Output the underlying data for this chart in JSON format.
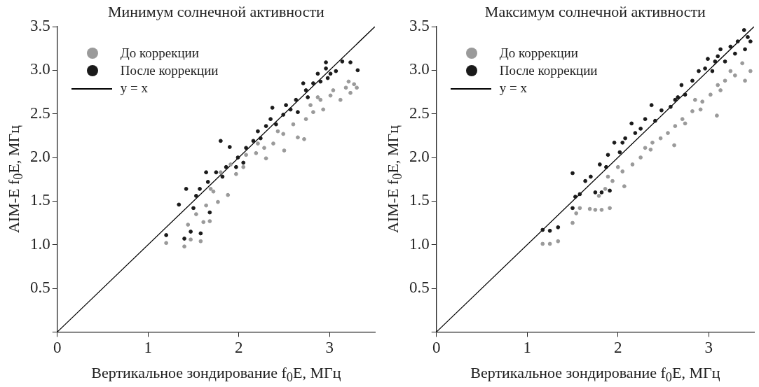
{
  "chart_data": [
    {
      "type": "scatter",
      "title": "Минимум солнечной активности",
      "xlabel": "Вертикальное зондирование f$_{0}$E, МГц",
      "ylabel": "AIM-E f$_{0}$E, МГц",
      "xlim": [
        0,
        3.5
      ],
      "ylim": [
        0,
        3.5
      ],
      "xticks": [
        0,
        1,
        2,
        3
      ],
      "yticks": [
        {
          "value": 0,
          "label": null
        },
        0.5,
        {
          "value": 1,
          "label": "1.0"
        },
        1.5,
        {
          "value": 2,
          "label": "2.0"
        },
        2.5,
        {
          "value": 3,
          "label": "3.0"
        },
        3.5
      ],
      "grid": false,
      "legend": "top left",
      "marker": "circle",
      "series": [
        {
          "name": "До коррекции",
          "type": "scatter",
          "color": "#9a9a9a",
          "x": [
            1.2,
            1.4,
            1.47,
            1.58,
            1.44,
            1.53,
            1.61,
            1.68,
            1.64,
            1.77,
            1.88,
            1.72,
            1.8,
            1.97,
            2.05,
            2.08,
            2.19,
            2.28,
            2.3,
            2.38,
            2.5,
            2.49,
            2.65,
            2.72,
            2.6,
            2.74,
            2.82,
            2.79,
            2.9,
            2.93,
            3.01,
            3.12,
            3.18,
            3.21,
            3.23,
            3.3,
            3.27,
            3.04,
            2.87,
            2.43,
            2.21,
            1.91,
            1.69
          ],
          "values": [
            1.02,
            0.98,
            1.06,
            1.04,
            1.23,
            1.35,
            1.26,
            1.27,
            1.45,
            1.49,
            1.57,
            1.61,
            1.83,
            1.81,
            1.89,
            2.03,
            2.05,
            2.11,
            1.99,
            2.16,
            2.08,
            2.27,
            2.23,
            2.21,
            2.38,
            2.44,
            2.52,
            2.6,
            2.66,
            2.55,
            2.71,
            2.66,
            2.8,
            2.87,
            2.74,
            2.8,
            2.84,
            2.77,
            2.69,
            2.3,
            2.16,
            1.92,
            1.64
          ]
        },
        {
          "name": "После коррекции",
          "type": "scatter",
          "color": "#1a1a1a",
          "x": [
            1.2,
            1.34,
            1.42,
            1.4,
            1.47,
            1.58,
            1.68,
            1.5,
            1.53,
            1.57,
            1.66,
            1.8,
            1.75,
            1.9,
            1.86,
            1.99,
            2.08,
            2.16,
            2.21,
            2.3,
            2.35,
            2.37,
            2.49,
            2.52,
            2.63,
            2.57,
            2.74,
            2.82,
            2.87,
            2.96,
            3.01,
            3.07,
            3.14,
            3.23,
            3.31,
            2.98,
            2.9,
            2.76,
            2.65,
            2.41,
            2.24,
            2.05,
            1.97,
            1.82,
            1.64,
            2.96,
            2.71
          ],
          "values": [
            1.11,
            1.46,
            1.64,
            1.07,
            1.15,
            1.13,
            1.37,
            1.42,
            1.56,
            1.64,
            1.72,
            2.19,
            1.83,
            2.12,
            1.89,
            2.0,
            2.11,
            2.19,
            2.3,
            2.36,
            2.44,
            2.57,
            2.49,
            2.6,
            2.66,
            2.55,
            2.77,
            2.85,
            2.96,
            3.09,
            2.96,
            2.99,
            3.1,
            3.09,
            3.0,
            2.91,
            2.87,
            2.69,
            2.52,
            2.38,
            2.22,
            1.94,
            1.89,
            1.78,
            1.83,
            3.02,
            2.85
          ]
        },
        {
          "name": "y = x",
          "type": "line",
          "color": "#000000",
          "marker": "none",
          "line_style": "solid",
          "x": [
            0,
            3.5
          ],
          "values": [
            0,
            3.5
          ]
        }
      ]
    },
    {
      "type": "scatter",
      "title": "Максимум солнечной активности",
      "xlabel": "Вертикальное зондирование f$_{0}$E, МГц",
      "ylabel": "AIM-E f$_{0}$E, МГц",
      "xlim": [
        0,
        3.5
      ],
      "ylim": [
        0,
        3.5
      ],
      "xticks": [
        0,
        1,
        2,
        3
      ],
      "yticks": [
        {
          "value": 0,
          "label": null
        },
        0.5,
        {
          "value": 1,
          "label": "1.0"
        },
        1.5,
        {
          "value": 2,
          "label": "2.0"
        },
        2.5,
        {
          "value": 3,
          "label": "3.0"
        },
        3.5
      ],
      "grid": false,
      "legend": "top left",
      "marker": "circle",
      "series": [
        {
          "name": "До коррекции",
          "type": "scatter",
          "color": "#9a9a9a",
          "x": [
            1.17,
            1.25,
            1.34,
            1.5,
            1.54,
            1.58,
            1.69,
            1.75,
            1.82,
            1.91,
            1.79,
            1.86,
            1.94,
            2.05,
            2.07,
            2.16,
            2.25,
            2.3,
            2.38,
            2.47,
            2.55,
            2.62,
            2.63,
            2.71,
            2.82,
            2.91,
            2.93,
            3.02,
            3.09,
            3.1,
            3.18,
            3.29,
            3.37,
            3.46,
            3.4,
            3.24,
            3.13,
            2.85,
            2.74,
            2.36,
            2.0,
            1.89
          ],
          "values": [
            1.01,
            1.01,
            1.04,
            1.25,
            1.36,
            1.42,
            1.41,
            1.4,
            1.4,
            1.42,
            1.56,
            1.64,
            1.73,
            1.84,
            1.67,
            1.92,
            2.0,
            2.11,
            2.17,
            2.22,
            2.28,
            2.14,
            2.36,
            2.44,
            2.53,
            2.55,
            2.64,
            2.72,
            2.48,
            2.83,
            2.88,
            2.94,
            3.08,
            2.99,
            2.88,
            2.99,
            2.77,
            2.66,
            2.39,
            2.09,
            1.89,
            1.78
          ]
        },
        {
          "name": "После коррекции",
          "type": "scatter",
          "color": "#1a1a1a",
          "x": [
            1.17,
            1.25,
            1.34,
            1.5,
            1.5,
            1.53,
            1.58,
            1.64,
            1.7,
            1.75,
            1.8,
            1.82,
            1.91,
            1.89,
            1.96,
            2.02,
            2.05,
            2.15,
            2.19,
            2.25,
            2.3,
            2.37,
            2.41,
            2.48,
            2.58,
            2.63,
            2.7,
            2.74,
            2.82,
            2.89,
            2.96,
            2.99,
            3.04,
            3.1,
            3.13,
            3.18,
            3.24,
            3.32,
            3.39,
            3.4,
            3.46,
            3.43,
            3.29,
            3.07,
            2.66,
            2.08,
            1.87
          ],
          "values": [
            1.17,
            1.16,
            1.2,
            1.82,
            1.42,
            1.55,
            1.58,
            1.73,
            1.78,
            1.6,
            1.92,
            1.6,
            1.62,
            2.03,
            2.17,
            2.06,
            2.17,
            2.39,
            2.28,
            2.33,
            2.44,
            2.6,
            2.42,
            2.54,
            2.58,
            2.66,
            2.83,
            2.72,
            2.88,
            2.99,
            3.02,
            3.13,
            2.99,
            3.16,
            3.24,
            3.1,
            3.27,
            3.33,
            3.46,
            3.24,
            3.33,
            3.38,
            3.19,
            3.1,
            2.69,
            2.22,
            1.89
          ]
        },
        {
          "name": "y = x",
          "type": "line",
          "color": "#000000",
          "marker": "none",
          "line_style": "solid",
          "x": [
            0,
            3.5
          ],
          "values": [
            0,
            3.5
          ]
        }
      ]
    }
  ]
}
